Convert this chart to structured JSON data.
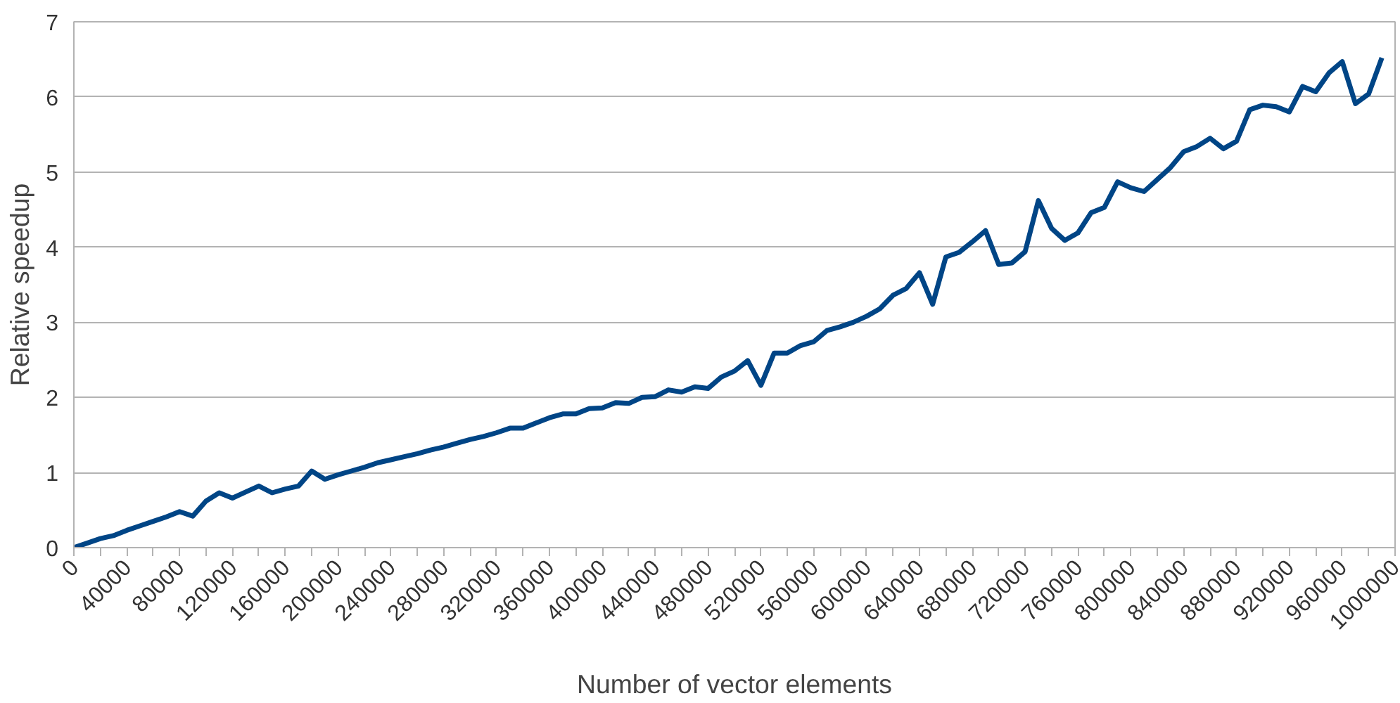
{
  "chart_data": {
    "type": "line",
    "xlabel": "Number of vector elements",
    "ylabel": "Relative speedup",
    "x": [
      0,
      10000,
      20000,
      30000,
      40000,
      50000,
      60000,
      70000,
      80000,
      90000,
      100000,
      110000,
      120000,
      130000,
      140000,
      150000,
      160000,
      170000,
      180000,
      190000,
      200000,
      210000,
      220000,
      230000,
      240000,
      250000,
      260000,
      270000,
      280000,
      290000,
      300000,
      310000,
      320000,
      330000,
      340000,
      350000,
      360000,
      370000,
      380000,
      390000,
      400000,
      410000,
      420000,
      430000,
      440000,
      450000,
      460000,
      470000,
      480000,
      490000,
      500000,
      510000,
      520000,
      530000,
      540000,
      550000,
      560000,
      570000,
      580000,
      590000,
      600000,
      610000,
      620000,
      630000,
      640000,
      650000,
      660000,
      670000,
      680000,
      690000,
      700000,
      710000,
      720000,
      730000,
      740000,
      750000,
      760000,
      770000,
      780000,
      790000,
      800000,
      810000,
      820000,
      830000,
      840000,
      850000,
      860000,
      870000,
      880000,
      890000,
      900000,
      910000,
      920000,
      930000,
      940000,
      950000,
      960000,
      970000,
      980000,
      990000
    ],
    "series": [
      {
        "color": "#004586",
        "values": [
          0,
          0.06,
          0.12,
          0.16,
          0.23,
          0.29,
          0.35,
          0.41,
          0.48,
          0.42,
          0.62,
          0.73,
          0.66,
          0.74,
          0.82,
          0.73,
          0.78,
          0.82,
          1.02,
          0.91,
          0.97,
          1.02,
          1.07,
          1.13,
          1.17,
          1.21,
          1.25,
          1.3,
          1.34,
          1.39,
          1.44,
          1.48,
          1.53,
          1.59,
          1.59,
          1.66,
          1.73,
          1.78,
          1.78,
          1.85,
          1.86,
          1.93,
          1.92,
          2.0,
          2.01,
          2.1,
          2.07,
          2.14,
          2.12,
          2.27,
          2.35,
          2.49,
          2.16,
          2.59,
          2.59,
          2.69,
          2.74,
          2.89,
          2.94,
          3.0,
          3.08,
          3.18,
          3.36,
          3.45,
          3.66,
          3.24,
          3.87,
          3.93,
          4.07,
          4.22,
          3.77,
          3.79,
          3.94,
          4.62,
          4.25,
          4.09,
          4.19,
          4.46,
          4.53,
          4.87,
          4.79,
          4.74,
          4.9,
          5.06,
          5.27,
          5.34,
          5.45,
          5.31,
          5.41,
          5.83,
          5.89,
          5.87,
          5.8,
          6.14,
          6.07,
          6.32,
          6.47,
          5.91,
          6.04,
          6.52
        ]
      }
    ],
    "xlim": [
      0,
      1000000
    ],
    "xticks": [
      0,
      {
        "value": 20000,
        "label": null
      },
      40000,
      {
        "value": 60000,
        "label": null
      },
      80000,
      {
        "value": 100000,
        "label": null
      },
      120000,
      {
        "value": 140000,
        "label": null
      },
      160000,
      {
        "value": 180000,
        "label": null
      },
      200000,
      {
        "value": 220000,
        "label": null
      },
      240000,
      {
        "value": 260000,
        "label": null
      },
      280000,
      {
        "value": 300000,
        "label": null
      },
      320000,
      {
        "value": 340000,
        "label": null
      },
      360000,
      {
        "value": 380000,
        "label": null
      },
      400000,
      {
        "value": 420000,
        "label": null
      },
      440000,
      {
        "value": 460000,
        "label": null
      },
      480000,
      {
        "value": 500000,
        "label": null
      },
      520000,
      {
        "value": 540000,
        "label": null
      },
      560000,
      {
        "value": 580000,
        "label": null
      },
      600000,
      {
        "value": 620000,
        "label": null
      },
      640000,
      {
        "value": 660000,
        "label": null
      },
      680000,
      {
        "value": 700000,
        "label": null
      },
      720000,
      {
        "value": 740000,
        "label": null
      },
      760000,
      {
        "value": 780000,
        "label": null
      },
      800000,
      {
        "value": 820000,
        "label": null
      },
      840000,
      {
        "value": 860000,
        "label": null
      },
      880000,
      {
        "value": 900000,
        "label": null
      },
      920000,
      {
        "value": 940000,
        "label": null
      },
      960000,
      {
        "value": 980000,
        "label": null
      },
      1000000
    ],
    "ylim": [
      0,
      7
    ],
    "yticks": [
      0,
      1,
      2,
      3,
      4,
      5,
      6,
      7
    ],
    "grid": "y",
    "marker": "none",
    "line_style": "solid"
  }
}
